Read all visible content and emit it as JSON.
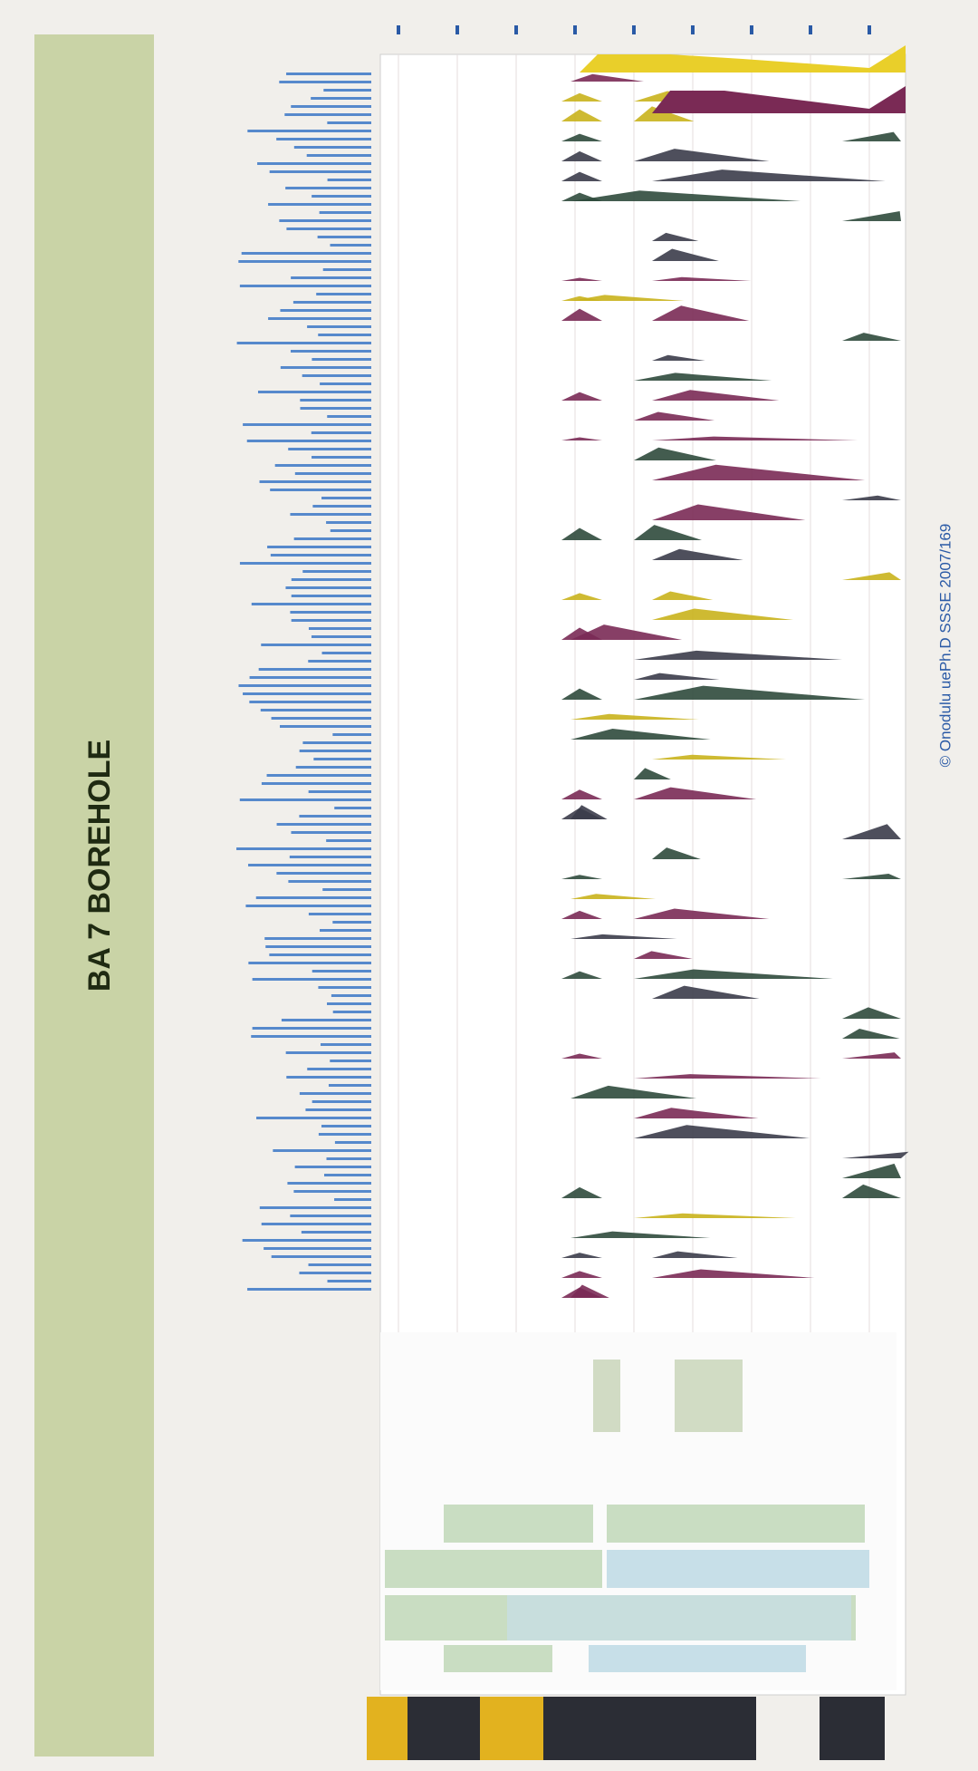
{
  "header": {
    "title": "BA 7 BOREHOLE"
  },
  "footer": {
    "credit": "© Onodulu uePh.D SSSE 2007/169"
  }
}
